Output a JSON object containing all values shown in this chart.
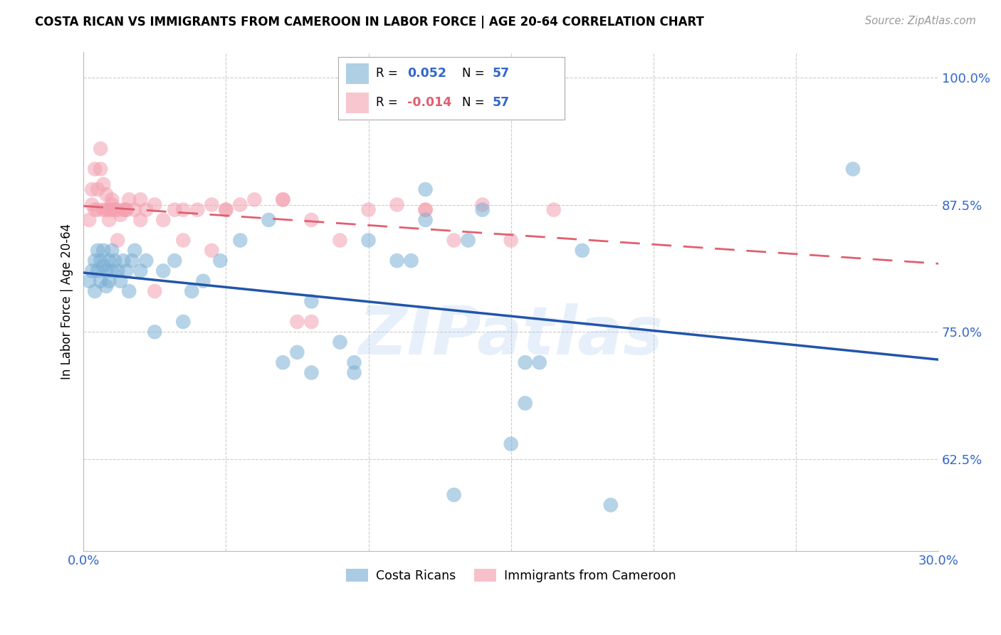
{
  "title": "COSTA RICAN VS IMMIGRANTS FROM CAMEROON IN LABOR FORCE | AGE 20-64 CORRELATION CHART",
  "source": "Source: ZipAtlas.com",
  "ylabel": "In Labor Force | Age 20-64",
  "xlim": [
    0.0,
    0.3
  ],
  "ylim": [
    0.535,
    1.025
  ],
  "yticks": [
    0.625,
    0.75,
    0.875,
    1.0
  ],
  "ytick_labels": [
    "62.5%",
    "75.0%",
    "87.5%",
    "100.0%"
  ],
  "xticks": [
    0.0,
    0.05,
    0.1,
    0.15,
    0.2,
    0.25,
    0.3
  ],
  "blue_R": 0.052,
  "blue_N": 57,
  "pink_R": -0.014,
  "pink_N": 57,
  "blue_color": "#7BAFD4",
  "pink_color": "#F4A0B0",
  "trend_blue_color": "#2255AA",
  "trend_pink_color": "#E06070",
  "watermark": "ZIPatlas",
  "legend_label_blue": "Costa Ricans",
  "legend_label_pink": "Immigrants from Cameroon",
  "blue_x": [
    0.002,
    0.003,
    0.004,
    0.004,
    0.005,
    0.005,
    0.006,
    0.006,
    0.007,
    0.007,
    0.008,
    0.008,
    0.009,
    0.009,
    0.01,
    0.01,
    0.011,
    0.012,
    0.013,
    0.014,
    0.015,
    0.016,
    0.017,
    0.018,
    0.02,
    0.022,
    0.025,
    0.028,
    0.032,
    0.035,
    0.038,
    0.042,
    0.048,
    0.055,
    0.065,
    0.07,
    0.075,
    0.08,
    0.09,
    0.095,
    0.1,
    0.11,
    0.12,
    0.135,
    0.15,
    0.155,
    0.16,
    0.175,
    0.115,
    0.27,
    0.08,
    0.095,
    0.12,
    0.14,
    0.155,
    0.13,
    0.185
  ],
  "blue_y": [
    0.8,
    0.81,
    0.82,
    0.79,
    0.81,
    0.83,
    0.8,
    0.82,
    0.815,
    0.83,
    0.81,
    0.795,
    0.82,
    0.8,
    0.81,
    0.83,
    0.82,
    0.81,
    0.8,
    0.82,
    0.81,
    0.79,
    0.82,
    0.83,
    0.81,
    0.82,
    0.75,
    0.81,
    0.82,
    0.76,
    0.79,
    0.8,
    0.82,
    0.84,
    0.86,
    0.72,
    0.73,
    0.78,
    0.74,
    0.72,
    0.84,
    0.82,
    0.89,
    0.84,
    0.64,
    0.72,
    0.72,
    0.83,
    0.82,
    0.91,
    0.71,
    0.71,
    0.86,
    0.87,
    0.68,
    0.59,
    0.58
  ],
  "pink_x": [
    0.002,
    0.003,
    0.003,
    0.004,
    0.004,
    0.005,
    0.005,
    0.006,
    0.006,
    0.007,
    0.007,
    0.008,
    0.008,
    0.009,
    0.009,
    0.01,
    0.01,
    0.011,
    0.012,
    0.013,
    0.014,
    0.015,
    0.016,
    0.018,
    0.02,
    0.022,
    0.025,
    0.028,
    0.032,
    0.035,
    0.04,
    0.045,
    0.05,
    0.055,
    0.06,
    0.07,
    0.075,
    0.08,
    0.09,
    0.1,
    0.11,
    0.12,
    0.13,
    0.14,
    0.15,
    0.165,
    0.12,
    0.08,
    0.035,
    0.02,
    0.025,
    0.01,
    0.012,
    0.015,
    0.05,
    0.07,
    0.045
  ],
  "pink_y": [
    0.86,
    0.875,
    0.89,
    0.87,
    0.91,
    0.87,
    0.89,
    0.91,
    0.93,
    0.87,
    0.895,
    0.87,
    0.885,
    0.87,
    0.86,
    0.88,
    0.875,
    0.87,
    0.87,
    0.865,
    0.87,
    0.87,
    0.88,
    0.87,
    0.88,
    0.87,
    0.875,
    0.86,
    0.87,
    0.87,
    0.87,
    0.875,
    0.87,
    0.875,
    0.88,
    0.88,
    0.76,
    0.86,
    0.84,
    0.87,
    0.875,
    0.87,
    0.84,
    0.875,
    0.84,
    0.87,
    0.87,
    0.76,
    0.84,
    0.86,
    0.79,
    0.87,
    0.84,
    0.87,
    0.87,
    0.88,
    0.83
  ]
}
